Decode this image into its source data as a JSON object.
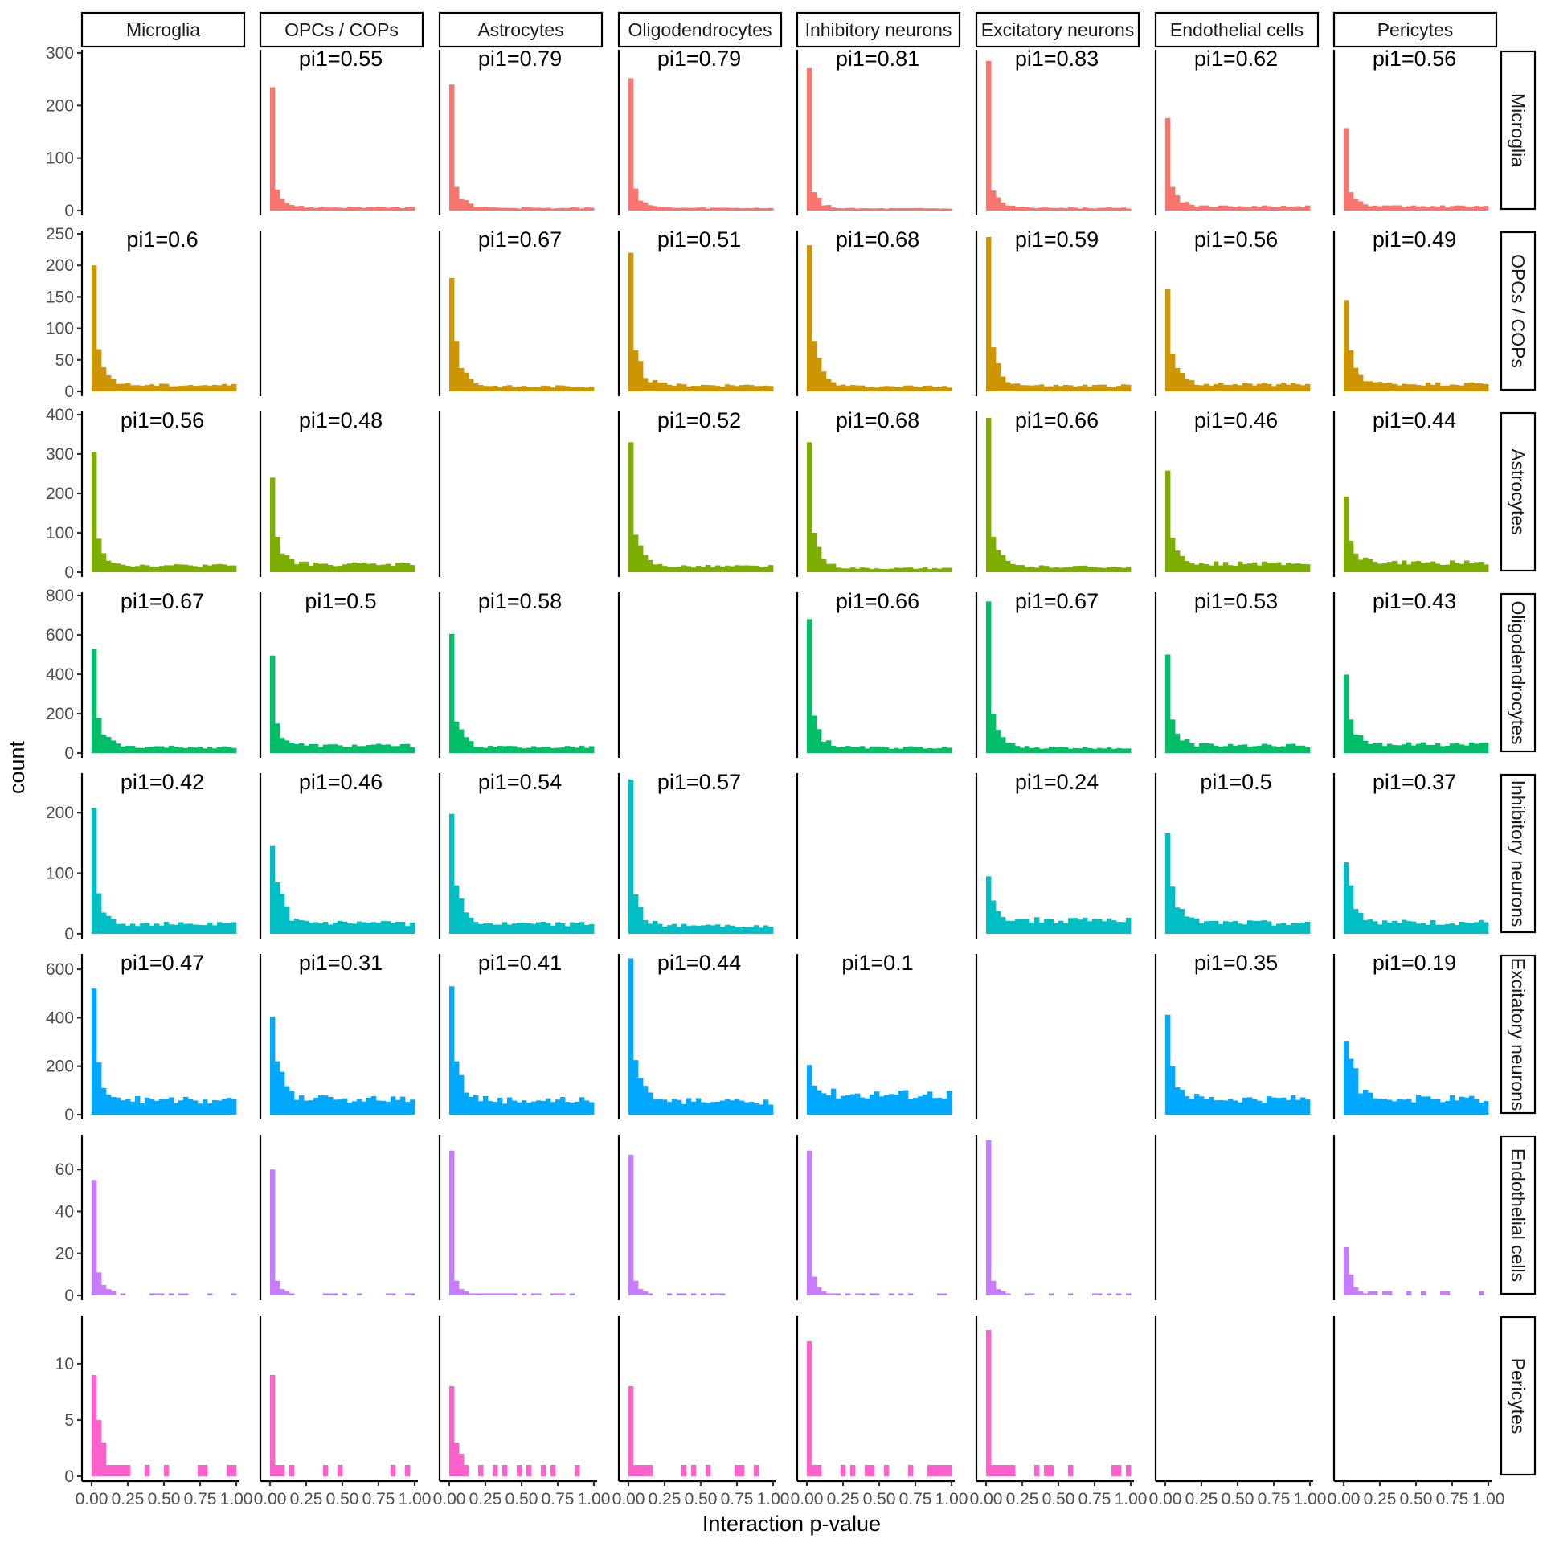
{
  "chart_data": {
    "type": "bar",
    "subtype": "faceted-histogram",
    "xlabel": "Interaction p-value",
    "ylabel": "count",
    "xlim": [
      0,
      1
    ],
    "x_tick_labels": [
      "0.00",
      "0.25",
      "0.50",
      "0.75",
      "1.00"
    ],
    "x_tick_values": [
      0,
      0.25,
      0.5,
      0.75,
      1
    ],
    "columns": [
      "Microglia",
      "OPCs / COPs",
      "Astrocytes",
      "Oligodendrocytes",
      "Inhibitory neurons",
      "Excitatory neurons",
      "Endothelial cells",
      "Pericytes"
    ],
    "rows": [
      {
        "name": "Microglia",
        "color": "#F8766D",
        "ylim": [
          0,
          300
        ],
        "y_ticks": [
          0,
          100,
          200,
          300
        ],
        "pi1": [
          "",
          "pi1=0.55",
          "pi1=0.79",
          "pi1=0.79",
          "pi1=0.81",
          "pi1=0.83",
          "pi1=0.62",
          "pi1=0.56"
        ],
        "peaks": [
          0,
          235,
          240,
          252,
          272,
          285,
          176,
          157
        ],
        "seconds": [
          0,
          40,
          45,
          42,
          35,
          38,
          45,
          35
        ],
        "tails": [
          0,
          6,
          5,
          5,
          4,
          5,
          8,
          8
        ]
      },
      {
        "name": "OPCs / COPs",
        "color": "#CD9600",
        "ylim": [
          0,
          250
        ],
        "y_ticks": [
          0,
          50,
          100,
          150,
          200,
          250
        ],
        "pi1": [
          "pi1=0.6",
          "",
          "pi1=0.67",
          "pi1=0.51",
          "pi1=0.68",
          "pi1=0.59",
          "pi1=0.56",
          "pi1=0.49"
        ],
        "peaks": [
          200,
          0,
          180,
          220,
          232,
          245,
          162,
          145
        ],
        "seconds": [
          67,
          0,
          80,
          65,
          80,
          70,
          60,
          65
        ],
        "tails": [
          10,
          0,
          8,
          10,
          8,
          9,
          11,
          12
        ]
      },
      {
        "name": "Astrocytes",
        "color": "#7CAE00",
        "ylim": [
          0,
          400
        ],
        "y_ticks": [
          0,
          100,
          200,
          300,
          400
        ],
        "pi1": [
          "pi1=0.56",
          "pi1=0.48",
          "",
          "pi1=0.52",
          "pi1=0.68",
          "pi1=0.66",
          "pi1=0.46",
          "pi1=0.44"
        ],
        "peaks": [
          305,
          240,
          0,
          330,
          330,
          392,
          258,
          192
        ],
        "seconds": [
          85,
          90,
          0,
          95,
          100,
          90,
          88,
          80
        ],
        "tails": [
          17,
          20,
          0,
          15,
          10,
          14,
          22,
          24
        ]
      },
      {
        "name": "Oligodendrocytes",
        "color": "#00BE67",
        "ylim": [
          0,
          800
        ],
        "y_ticks": [
          0,
          200,
          400,
          600,
          800
        ],
        "pi1": [
          "pi1=0.67",
          "pi1=0.5",
          "pi1=0.58",
          "",
          "pi1=0.66",
          "pi1=0.67",
          "pi1=0.53",
          "pi1=0.43"
        ],
        "peaks": [
          530,
          495,
          605,
          0,
          680,
          770,
          500,
          398
        ],
        "seconds": [
          178,
          150,
          160,
          0,
          190,
          200,
          170,
          170
        ],
        "tails": [
          30,
          38,
          30,
          0,
          28,
          27,
          38,
          45
        ]
      },
      {
        "name": "Inhibitory neurons",
        "color": "#00BFC4",
        "ylim": [
          0,
          260
        ],
        "y_ticks": [
          0,
          100,
          200
        ],
        "pi1": [
          "pi1=0.42",
          "pi1=0.46",
          "pi1=0.54",
          "pi1=0.57",
          "",
          "pi1=0.24",
          "pi1=0.5",
          "pi1=0.37"
        ],
        "peaks": [
          208,
          145,
          198,
          255,
          0,
          95,
          166,
          118
        ],
        "seconds": [
          67,
          85,
          80,
          65,
          0,
          55,
          78,
          80
        ],
        "tails": [
          16,
          17,
          16,
          13,
          0,
          22,
          18,
          19
        ]
      },
      {
        "name": "Excitatory neurons",
        "color": "#00A9FF",
        "ylim": [
          0,
          650
        ],
        "y_ticks": [
          0,
          200,
          400,
          600
        ],
        "pi1": [
          "pi1=0.47",
          "pi1=0.31",
          "pi1=0.41",
          "pi1=0.44",
          "pi1=0.1",
          "",
          "pi1=0.35",
          "pi1=0.19"
        ],
        "peaks": [
          520,
          405,
          530,
          645,
          205,
          0,
          412,
          305
        ],
        "seconds": [
          215,
          220,
          220,
          225,
          120,
          0,
          200,
          230
        ],
        "tails": [
          60,
          65,
          60,
          55,
          85,
          0,
          65,
          65
        ]
      },
      {
        "name": "Endothelial cells",
        "color": "#C77CFF",
        "ylim": [
          0,
          75
        ],
        "y_ticks": [
          0,
          20,
          40,
          60
        ],
        "pi1": [
          "",
          "",
          "",
          "",
          "",
          "",
          "",
          ""
        ],
        "peaks": [
          55,
          60,
          69,
          67,
          69,
          74,
          0,
          23
        ],
        "seconds": [
          11,
          7,
          7,
          7,
          9,
          7,
          0,
          10
        ],
        "tails": [
          1,
          1,
          1,
          1,
          1,
          1,
          0,
          2
        ]
      },
      {
        "name": "Pericytes",
        "color": "#FF61CC",
        "ylim": [
          0,
          14
        ],
        "y_ticks": [
          0,
          5,
          10
        ],
        "pi1": [
          "",
          "",
          "",
          "",
          "",
          "",
          "",
          ""
        ],
        "peaks": [
          9,
          9,
          8,
          8,
          12,
          13,
          0,
          0
        ],
        "seconds": [
          5,
          1,
          3,
          1,
          1,
          1,
          0,
          0
        ],
        "tails": [
          0,
          0,
          0,
          0,
          0,
          0,
          1,
          0
        ]
      }
    ]
  }
}
